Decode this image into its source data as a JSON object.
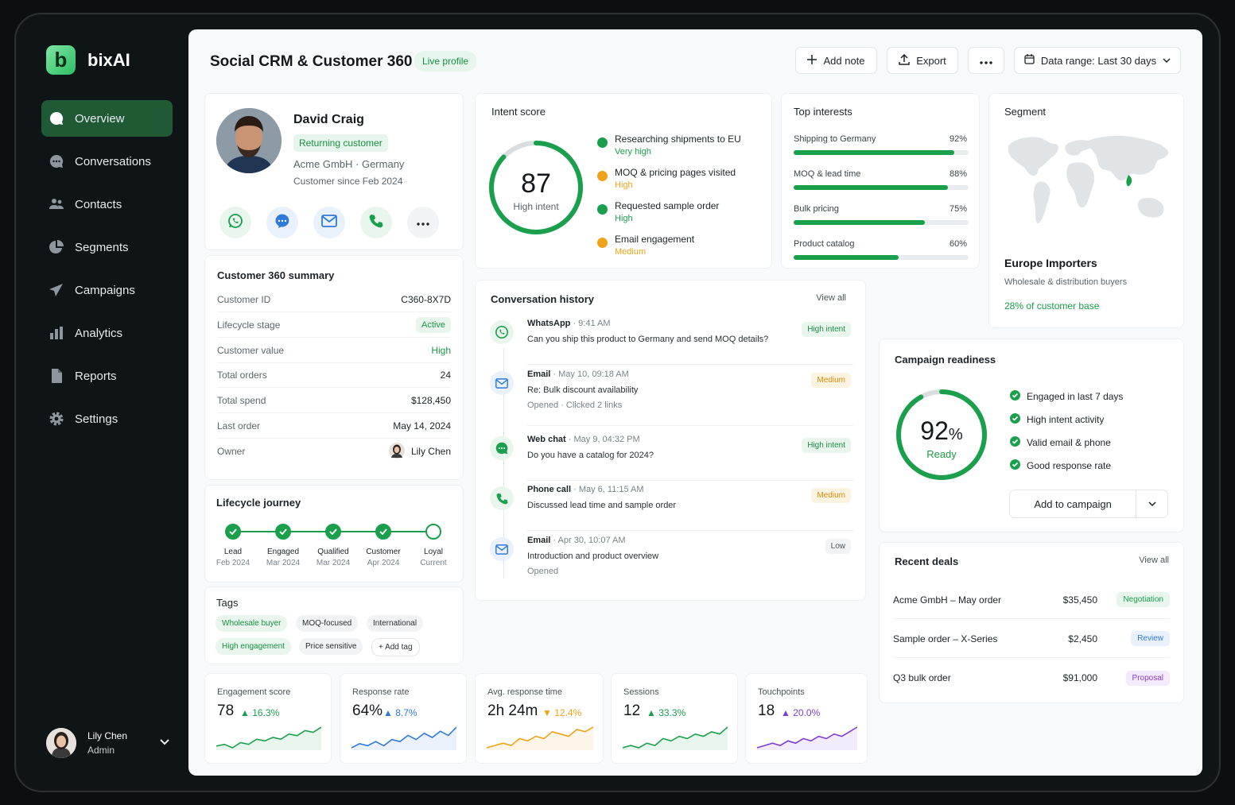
{
  "app": {
    "name": "bixAI",
    "logo_letter": "b"
  },
  "nav": [
    {
      "label": "Overview",
      "icon": "chat-bubble-icon",
      "active": true
    },
    {
      "label": "Conversations",
      "icon": "message-icon"
    },
    {
      "label": "Contacts",
      "icon": "users-icon"
    },
    {
      "label": "Segments",
      "icon": "pie-icon"
    },
    {
      "label": "Campaigns",
      "icon": "send-icon"
    },
    {
      "label": "Analytics",
      "icon": "bar-chart-icon"
    },
    {
      "label": "Reports",
      "icon": "file-icon"
    },
    {
      "label": "Settings",
      "icon": "gear-icon"
    }
  ],
  "user": {
    "name": "Lily Chen",
    "role": "Admin"
  },
  "header": {
    "title": "Social CRM & Customer 360",
    "badge": "Live profile",
    "add_note": "Add note",
    "export": "Export",
    "date_range": "Data range: Last 30 days"
  },
  "profile": {
    "name": "David Craig",
    "status": "Returning customer",
    "company": "Acme GmbH",
    "country": "Germany",
    "since": "Customer since Feb 2024"
  },
  "summary": {
    "title": "Customer 360 summary",
    "rows": [
      {
        "label": "Customer ID",
        "value": "C360-8X7D"
      },
      {
        "label": "Lifecycle stage",
        "value": "Active"
      },
      {
        "label": "Customer value",
        "value": "High"
      },
      {
        "label": "Total orders",
        "value": "24"
      },
      {
        "label": "Total spend",
        "value": "$128,450"
      },
      {
        "label": "Last order",
        "value": "May 14, 2024"
      },
      {
        "label": "Owner",
        "value": "Lily Chen"
      }
    ]
  },
  "lifecycle": {
    "title": "Lifecycle journey",
    "steps": [
      {
        "label": "Lead",
        "date": "Feb 2024",
        "done": true
      },
      {
        "label": "Engaged",
        "date": "Mar 2024",
        "done": true
      },
      {
        "label": "Qualified",
        "date": "Mar 2024",
        "done": true
      },
      {
        "label": "Customer",
        "date": "Apr 2024",
        "done": true
      },
      {
        "label": "Loyal",
        "date": "Current",
        "done": false
      }
    ]
  },
  "tags": {
    "title": "Tags",
    "items": [
      "Wholesale buyer",
      "MOQ-focused",
      "International",
      "High engagement",
      "Price sensitive"
    ],
    "add": "+ Add tag"
  },
  "intent": {
    "title": "Intent score",
    "score": "87",
    "score_fraction": 0.87,
    "label": "High intent",
    "signals": [
      {
        "text": "Researching shipments to EU",
        "level": "Very high",
        "color": "#1aa04d"
      },
      {
        "text": "MOQ & pricing pages visited",
        "level": "High",
        "color": "#f0a21a"
      },
      {
        "text": "Requested sample order",
        "level": "High",
        "color": "#1aa04d"
      },
      {
        "text": "Email engagement",
        "level": "Medium",
        "color": "#f0a21a"
      }
    ]
  },
  "interests": {
    "title": "Top interests",
    "items": [
      {
        "label": "Shipping to Germany",
        "pct": "92%",
        "value": 0.92
      },
      {
        "label": "MOQ & lead time",
        "pct": "88%",
        "value": 0.88
      },
      {
        "label": "Bulk pricing",
        "pct": "75%",
        "value": 0.75
      },
      {
        "label": "Product catalog",
        "pct": "60%",
        "value": 0.6
      }
    ]
  },
  "segment": {
    "title": "Segment",
    "name": "Europe Importers",
    "desc": "Wholesale & distribution buyers",
    "share": "28% of customer base"
  },
  "conversations": {
    "title": "Conversation history",
    "view_all": "View all",
    "items": [
      {
        "channel": "WhatsApp",
        "time": "9:41 AM",
        "text": "Can you ship this product to Germany and send MOQ details?",
        "sub": "",
        "badge": "High intent",
        "kind": "whatsapp"
      },
      {
        "channel": "Email",
        "time": "May 10, 09:18 AM",
        "text": "Re: Bulk discount availability",
        "sub": "Opened · Clicked 2 links",
        "badge": "Medium",
        "kind": "email"
      },
      {
        "channel": "Web chat",
        "time": "May 9, 04:32 PM",
        "text": "Do you have a catalog for 2024?",
        "sub": "",
        "badge": "High intent",
        "kind": "chat"
      },
      {
        "channel": "Phone call",
        "time": "May 6, 11:15 AM",
        "text": "Discussed lead time and sample order",
        "sub": "",
        "badge": "Medium",
        "kind": "phone"
      },
      {
        "channel": "Email",
        "time": "Apr 30, 10:07 AM",
        "text": "Introduction and product overview",
        "sub": "Opened",
        "badge": "Low",
        "kind": "email"
      }
    ]
  },
  "campaign": {
    "title": "Campaign readiness",
    "pct": "92",
    "pct_sign": "%",
    "value": 0.92,
    "label": "Ready",
    "checks": [
      "Engaged in last 7 days",
      "High intent activity",
      "Valid email & phone",
      "Good response rate"
    ],
    "button": "Add to campaign"
  },
  "deals": {
    "title": "Recent deals",
    "view_all": "View all",
    "items": [
      {
        "name": "Acme GmbH – May order",
        "amount": "$35,450",
        "stage": "Negotiation",
        "color": "#1aa04d",
        "bg": "#e8f6ed"
      },
      {
        "name": "Sample order – X-Series",
        "amount": "$2,450",
        "stage": "Review",
        "color": "#2f7ad9",
        "bg": "#e8f1fc"
      },
      {
        "name": "Q3 bulk order",
        "amount": "$91,000",
        "stage": "Proposal",
        "color": "#8a3fd1",
        "bg": "#f3eafb"
      }
    ]
  },
  "kpis": [
    {
      "label": "Engagement score",
      "value": "78",
      "change": "16.3%",
      "dir": "up",
      "color": "#1aa04d",
      "series": [
        4,
        5,
        3,
        6,
        5,
        8,
        7,
        9,
        8,
        11,
        10,
        13,
        12,
        15
      ]
    },
    {
      "label": "Response rate",
      "value": "64%",
      "change": "8.7%",
      "dir": "up",
      "color": "#2f7ad9",
      "series": [
        4,
        6,
        5,
        7,
        5,
        8,
        7,
        10,
        8,
        11,
        9,
        12,
        10,
        14
      ]
    },
    {
      "label": "Avg. response time",
      "value": "2h 24m",
      "change": "12.4%",
      "dir": "down",
      "color": "#f0a21a",
      "series": [
        4,
        5,
        6,
        5,
        8,
        7,
        9,
        8,
        11,
        10,
        9,
        12,
        11,
        13
      ]
    },
    {
      "label": "Sessions",
      "value": "12",
      "change": "33.3%",
      "dir": "up",
      "color": "#1aa04d",
      "series": [
        3,
        4,
        3,
        5,
        4,
        7,
        6,
        8,
        7,
        9,
        8,
        10,
        9,
        12
      ]
    },
    {
      "label": "Touchpoints",
      "value": "18",
      "change": "20.0%",
      "dir": "up",
      "color": "#7c3fd6",
      "series": [
        5,
        6,
        7,
        6,
        8,
        7,
        9,
        8,
        10,
        9,
        11,
        10,
        12,
        14
      ]
    }
  ]
}
